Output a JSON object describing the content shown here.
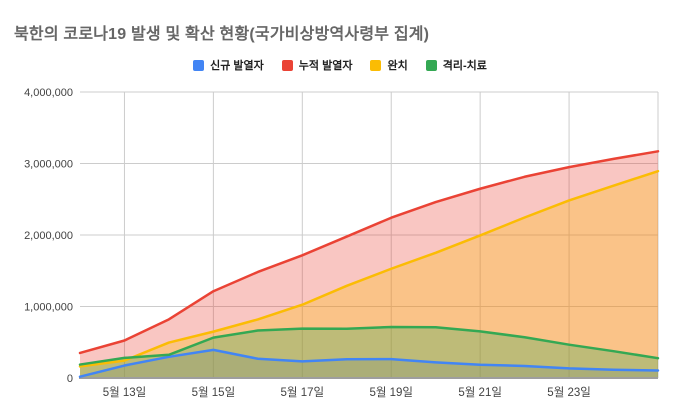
{
  "title": "북한의 코로나19 발생 및 확산 현황(국가비상방역사령부 집계)",
  "styles": {
    "background": "#ffffff",
    "title_color": "#666666",
    "legend_text_color": "#1f1f1f",
    "axis_text_color": "#424242",
    "grid_color": "#cccccc",
    "baseline_color": "#9e9e9e"
  },
  "chart_data": {
    "type": "area",
    "title": "북한의 코로나19 발생 및 확산 현황(국가비상방역사령부 집계)",
    "x": [
      "5월 12일",
      "5월 13일",
      "5월 14일",
      "5월 15일",
      "5월 16일",
      "5월 17일",
      "5월 18일",
      "5월 19일",
      "5월 20일",
      "5월 21일",
      "5월 22일",
      "5월 23일",
      "5월 24일",
      "5월 25일"
    ],
    "x_tick_labels": [
      "5월 13일",
      "5월 15일",
      "5월 17일",
      "5월 19일",
      "5월 21일",
      "5월 23일"
    ],
    "x_tick_indices": [
      1,
      3,
      5,
      7,
      9,
      11
    ],
    "grid_x_indices": [
      1,
      3,
      5,
      7,
      9,
      11,
      13
    ],
    "y_tick_labels": [
      "0",
      "1,000,000",
      "2,000,000",
      "3,000,000",
      "4,000,000"
    ],
    "y_tick_values": [
      0,
      1000000,
      2000000,
      3000000,
      4000000
    ],
    "ylim": [
      0,
      4000000
    ],
    "grid": true,
    "legend_position": "top",
    "fill_opacity": 0.3,
    "series": [
      {
        "name": "신규 발열자",
        "color": "#4285f4",
        "values": [
          18000,
          174440,
          296180,
          392920,
          269510,
          232880,
          262270,
          263370,
          219030,
          186090,
          167650,
          134510,
          115970,
          105500
        ]
      },
      {
        "name": "누적 발열자",
        "color": "#ea4335",
        "values": [
          350000,
          524440,
          820620,
          1213550,
          1483060,
          1715950,
          1978230,
          2241610,
          2460640,
          2646730,
          2814380,
          2948900,
          3064880,
          3170390
        ]
      },
      {
        "name": "완치",
        "color": "#fbbc04",
        "values": [
          162200,
          243630,
          496030,
          648630,
          819090,
          1024720,
          1289370,
          1528130,
          1751330,
          1993970,
          2244890,
          2483070,
          2689680,
          2893270
        ]
      },
      {
        "name": "격리-치료",
        "color": "#34a853",
        "values": [
          187800,
          280810,
          324550,
          564860,
          663910,
          691170,
          688800,
          713420,
          709260,
          652710,
          569430,
          465760,
          375130,
          277050
        ]
      }
    ]
  }
}
